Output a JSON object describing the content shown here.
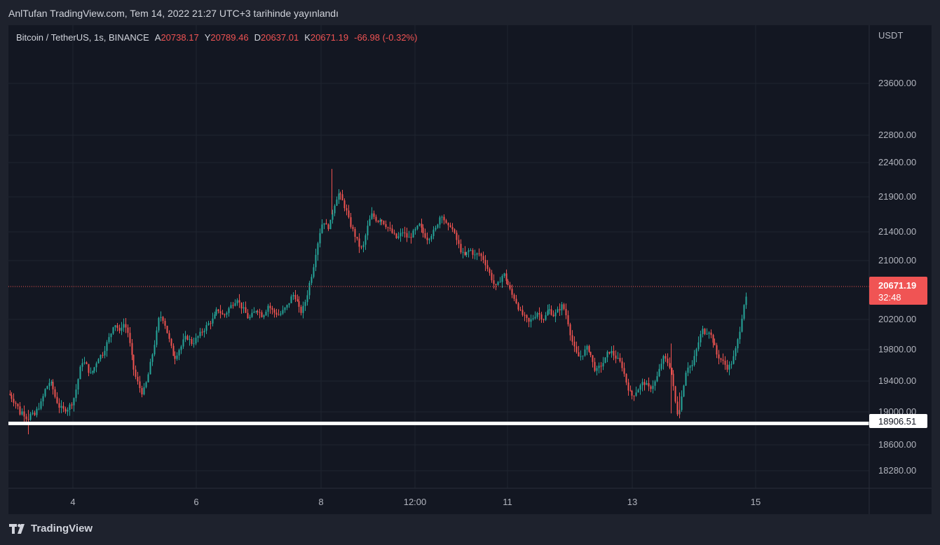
{
  "header": {
    "published": "AnlTufan TradingView.com, Tem 14, 2022 21:27 UTC+3 tarihinde yayınlandı"
  },
  "legend": {
    "symbol": "Bitcoin / TetherUS, 1s, BINANCE",
    "open_label": "A",
    "open": "20738.17",
    "high_label": "Y",
    "high": "20789.46",
    "low_label": "D",
    "low": "20637.01",
    "close_label": "K",
    "close": "20671.19",
    "change": "-66.98 (-0.32%)"
  },
  "footer": {
    "brand": "TradingView"
  },
  "colors": {
    "background": "#131722",
    "up": "#26a69a",
    "down": "#ef5350",
    "support_line": "#ffffff",
    "price_label_bg": "#f05454"
  },
  "chart_data": {
    "type": "candlestick",
    "currency_label": "USDT",
    "y_ticks": [
      "23600.00",
      "22800.00",
      "22400.00",
      "21900.00",
      "21400.00",
      "21000.00",
      "20200.00",
      "19800.00",
      "19400.00",
      "19000.00",
      "18600.00",
      "18280.00"
    ],
    "x_ticks": [
      "4",
      "6",
      "8",
      "12:00",
      "11",
      "13",
      "15"
    ],
    "current_price": "20671.19",
    "countdown": "32:48",
    "support_level": "18906.51",
    "support_value": 18906.51,
    "path_points": [
      [
        0,
        19330
      ],
      [
        3,
        19300
      ],
      [
        6,
        19250
      ],
      [
        10,
        19200
      ],
      [
        13,
        19150
      ],
      [
        16,
        19050
      ],
      [
        20,
        19080
      ],
      [
        24,
        19000
      ],
      [
        28,
        18980
      ],
      [
        32,
        19050
      ],
      [
        36,
        19000
      ],
      [
        40,
        19100
      ],
      [
        46,
        19200
      ],
      [
        52,
        19400
      ],
      [
        58,
        19500
      ],
      [
        62,
        19450
      ],
      [
        66,
        19300
      ],
      [
        72,
        19150
      ],
      [
        78,
        19100
      ],
      [
        84,
        19120
      ],
      [
        90,
        19200
      ],
      [
        94,
        19300
      ],
      [
        98,
        19500
      ],
      [
        104,
        19800
      ],
      [
        110,
        19750
      ],
      [
        116,
        19600
      ],
      [
        122,
        19700
      ],
      [
        128,
        19850
      ],
      [
        134,
        19900
      ],
      [
        140,
        20050
      ],
      [
        146,
        20200
      ],
      [
        150,
        20350
      ],
      [
        154,
        20300
      ],
      [
        158,
        20200
      ],
      [
        162,
        20350
      ],
      [
        166,
        20300
      ],
      [
        170,
        20200
      ],
      [
        174,
        19950
      ],
      [
        178,
        19700
      ],
      [
        182,
        19550
      ],
      [
        186,
        19450
      ],
      [
        190,
        19350
      ],
      [
        194,
        19400
      ],
      [
        198,
        19550
      ],
      [
        202,
        19750
      ],
      [
        206,
        19950
      ],
      [
        210,
        20150
      ],
      [
        214,
        20400
      ],
      [
        218,
        20450
      ],
      [
        222,
        20350
      ],
      [
        226,
        20200
      ],
      [
        230,
        20050
      ],
      [
        234,
        19900
      ],
      [
        238,
        19850
      ],
      [
        242,
        19950
      ],
      [
        246,
        20000
      ],
      [
        250,
        20100
      ],
      [
        254,
        20150
      ],
      [
        258,
        20100
      ],
      [
        262,
        20050
      ],
      [
        266,
        20100
      ],
      [
        270,
        20150
      ],
      [
        274,
        20200
      ],
      [
        278,
        20250
      ],
      [
        282,
        20300
      ],
      [
        286,
        20350
      ],
      [
        290,
        20380
      ],
      [
        294,
        20450
      ],
      [
        298,
        20550
      ],
      [
        302,
        20500
      ],
      [
        306,
        20450
      ],
      [
        310,
        20480
      ],
      [
        314,
        20550
      ],
      [
        318,
        20600
      ],
      [
        322,
        20650
      ],
      [
        326,
        20700
      ],
      [
        330,
        20600
      ],
      [
        334,
        20550
      ],
      [
        338,
        20480
      ],
      [
        342,
        20400
      ],
      [
        346,
        20450
      ],
      [
        350,
        20500
      ],
      [
        354,
        20550
      ],
      [
        358,
        20500
      ],
      [
        362,
        20450
      ],
      [
        366,
        20500
      ],
      [
        370,
        20600
      ],
      [
        374,
        20550
      ],
      [
        378,
        20500
      ],
      [
        382,
        20480
      ],
      [
        386,
        20460
      ],
      [
        390,
        20500
      ],
      [
        394,
        20550
      ],
      [
        398,
        20600
      ],
      [
        402,
        20700
      ],
      [
        406,
        20750
      ],
      [
        410,
        20700
      ],
      [
        414,
        20550
      ],
      [
        418,
        20500
      ],
      [
        422,
        20600
      ],
      [
        426,
        20750
      ],
      [
        430,
        20950
      ],
      [
        434,
        21100
      ],
      [
        438,
        21350
      ],
      [
        442,
        21550
      ],
      [
        446,
        21750
      ],
      [
        450,
        21800
      ],
      [
        454,
        21700
      ],
      [
        458,
        21750
      ],
      [
        462,
        21950
      ],
      [
        466,
        22100
      ],
      [
        470,
        22200
      ],
      [
        474,
        22150
      ],
      [
        478,
        22050
      ],
      [
        482,
        21950
      ],
      [
        486,
        21800
      ],
      [
        490,
        21700
      ],
      [
        494,
        21600
      ],
      [
        498,
        21500
      ],
      [
        502,
        21400
      ],
      [
        506,
        21450
      ],
      [
        510,
        21650
      ],
      [
        514,
        21800
      ],
      [
        518,
        21900
      ],
      [
        522,
        21850
      ],
      [
        526,
        21800
      ],
      [
        530,
        21850
      ],
      [
        534,
        21800
      ],
      [
        538,
        21750
      ],
      [
        542,
        21700
      ],
      [
        546,
        21650
      ],
      [
        550,
        21600
      ],
      [
        554,
        21550
      ],
      [
        558,
        21600
      ],
      [
        562,
        21650
      ],
      [
        566,
        21600
      ],
      [
        570,
        21550
      ],
      [
        574,
        21600
      ],
      [
        578,
        21650
      ],
      [
        582,
        21700
      ],
      [
        586,
        21750
      ],
      [
        590,
        21650
      ],
      [
        594,
        21600
      ],
      [
        598,
        21550
      ],
      [
        602,
        21600
      ],
      [
        606,
        21650
      ],
      [
        610,
        21700
      ],
      [
        614,
        21850
      ],
      [
        618,
        21900
      ],
      [
        622,
        21800
      ],
      [
        626,
        21700
      ],
      [
        630,
        21750
      ],
      [
        634,
        21650
      ],
      [
        638,
        21550
      ],
      [
        642,
        21450
      ],
      [
        646,
        21350
      ],
      [
        650,
        21300
      ],
      [
        654,
        21350
      ],
      [
        658,
        21400
      ],
      [
        662,
        21350
      ],
      [
        666,
        21300
      ],
      [
        670,
        21350
      ],
      [
        674,
        21300
      ],
      [
        678,
        21250
      ],
      [
        682,
        21150
      ],
      [
        686,
        21050
      ],
      [
        690,
        20950
      ],
      [
        694,
        20850
      ],
      [
        698,
        20900
      ],
      [
        702,
        21000
      ],
      [
        706,
        21050
      ],
      [
        710,
        20950
      ],
      [
        714,
        20850
      ],
      [
        718,
        20750
      ],
      [
        722,
        20700
      ],
      [
        726,
        20600
      ],
      [
        730,
        20500
      ],
      [
        734,
        20450
      ],
      [
        738,
        20400
      ],
      [
        742,
        20350
      ],
      [
        746,
        20400
      ],
      [
        750,
        20450
      ],
      [
        754,
        20500
      ],
      [
        758,
        20450
      ],
      [
        762,
        20400
      ],
      [
        766,
        20450
      ],
      [
        770,
        20550
      ],
      [
        774,
        20500
      ],
      [
        778,
        20450
      ],
      [
        782,
        20500
      ],
      [
        786,
        20550
      ],
      [
        790,
        20600
      ],
      [
        794,
        20500
      ],
      [
        798,
        20350
      ],
      [
        802,
        20150
      ],
      [
        806,
        20000
      ],
      [
        810,
        19900
      ],
      [
        814,
        19850
      ],
      [
        818,
        19900
      ],
      [
        822,
        19950
      ],
      [
        826,
        20000
      ],
      [
        830,
        19900
      ],
      [
        834,
        19750
      ],
      [
        838,
        19650
      ],
      [
        842,
        19700
      ],
      [
        846,
        19750
      ],
      [
        850,
        19800
      ],
      [
        854,
        19900
      ],
      [
        858,
        19950
      ],
      [
        862,
        19900
      ],
      [
        866,
        19850
      ],
      [
        870,
        19800
      ],
      [
        874,
        19750
      ],
      [
        878,
        19600
      ],
      [
        882,
        19450
      ],
      [
        886,
        19350
      ],
      [
        890,
        19300
      ],
      [
        894,
        19350
      ],
      [
        898,
        19400
      ],
      [
        902,
        19450
      ],
      [
        906,
        19500
      ],
      [
        910,
        19450
      ],
      [
        914,
        19400
      ],
      [
        918,
        19450
      ],
      [
        922,
        19500
      ],
      [
        926,
        19600
      ],
      [
        930,
        19750
      ],
      [
        934,
        19850
      ],
      [
        938,
        19800
      ],
      [
        942,
        19750
      ],
      [
        946,
        19600
      ],
      [
        950,
        19300
      ],
      [
        954,
        19050
      ],
      [
        958,
        19150
      ],
      [
        962,
        19400
      ],
      [
        966,
        19650
      ],
      [
        970,
        19750
      ],
      [
        974,
        19700
      ],
      [
        978,
        19850
      ],
      [
        982,
        20000
      ],
      [
        986,
        20150
      ],
      [
        990,
        20250
      ],
      [
        994,
        20200
      ],
      [
        998,
        20250
      ],
      [
        1002,
        20150
      ],
      [
        1006,
        20050
      ],
      [
        1010,
        19900
      ],
      [
        1014,
        19850
      ],
      [
        1018,
        19800
      ],
      [
        1022,
        19750
      ],
      [
        1026,
        19700
      ],
      [
        1030,
        19750
      ],
      [
        1034,
        19850
      ],
      [
        1038,
        20000
      ],
      [
        1042,
        20200
      ],
      [
        1046,
        20450
      ],
      [
        1050,
        20700
      ],
      [
        1054,
        20671
      ]
    ]
  }
}
